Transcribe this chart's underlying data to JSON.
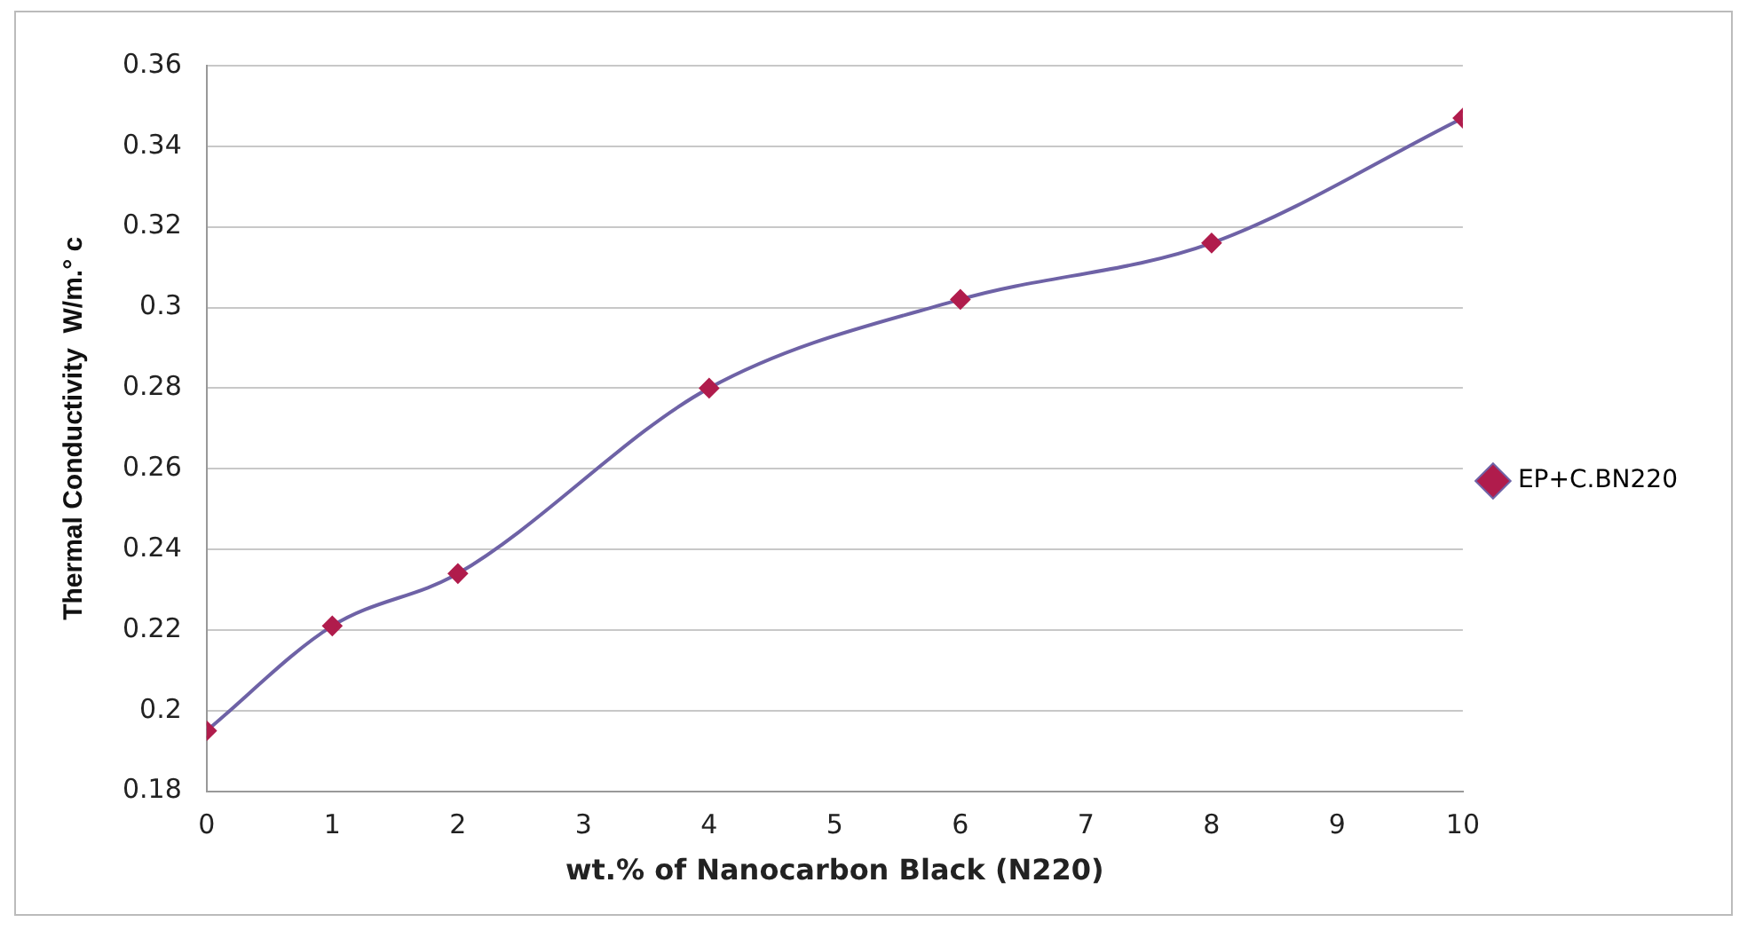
{
  "chart_data": {
    "type": "line",
    "xlabel": "wt.% of Nanocarbon Black (N220)",
    "ylabel": "Thermal Conductivity  W/m.° c",
    "x": [
      0,
      1,
      2,
      4,
      6,
      8,
      10
    ],
    "series": [
      {
        "name": "EP+C.BN220",
        "color": "#6e62a6",
        "colors": [
          "#b01c4c",
          "#b01c4c",
          "#b01c4c",
          "#b01c4c",
          "#b01c4c",
          "#b01c4c",
          "#b01c4c"
        ],
        "values": [
          0.195,
          0.221,
          0.234,
          0.28,
          0.302,
          0.316,
          0.347
        ]
      }
    ],
    "xlim": [
      0,
      10
    ],
    "xticks": [
      0,
      1,
      2,
      3,
      4,
      5,
      6,
      7,
      8,
      9,
      10
    ],
    "ylim": [
      0.18,
      0.36
    ],
    "yticks": [
      0.18,
      0.2,
      0.22,
      0.24,
      0.26,
      0.28,
      0.3,
      0.32,
      0.34,
      0.36
    ],
    "grid": "y",
    "legend": "right",
    "marker": "diamond",
    "line_style": "solid"
  }
}
